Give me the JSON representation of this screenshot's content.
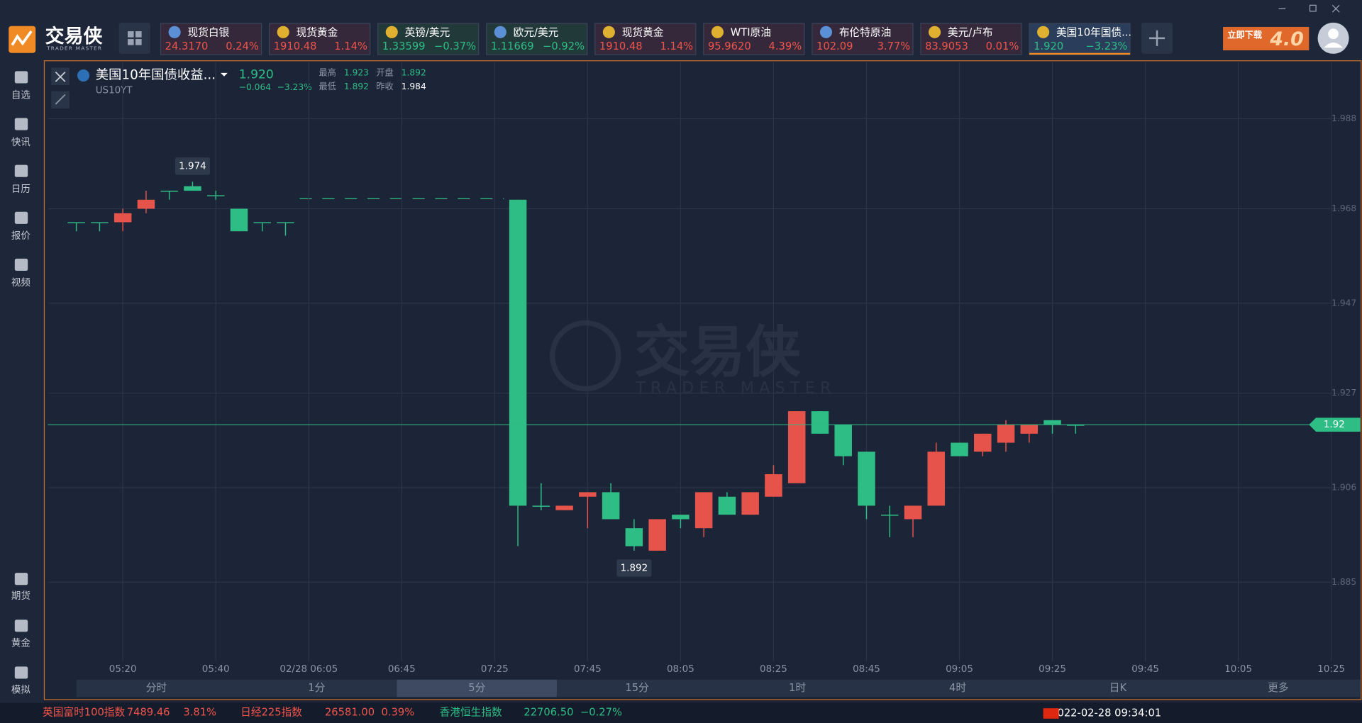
{
  "app": {
    "logo": "交易侠",
    "logo_sub": "TRADER MASTER",
    "promo": "立即下载",
    "promo_version": "4.0"
  },
  "sidebar": {
    "top": [
      "自选",
      "快讯",
      "日历",
      "报价",
      "视频"
    ],
    "bottom": [
      "期货",
      "黄金",
      "模拟"
    ]
  },
  "tabs": [
    {
      "name": "现货白银",
      "price": "24.3170",
      "change": "0.24%",
      "color": "#f0544a"
    },
    {
      "name": "现货黄金",
      "price": "1910.48",
      "change": "1.14%",
      "color": "#f0544a"
    },
    {
      "name": "英镑/美元",
      "price": "1.33599",
      "change": "−0.37%",
      "color": "#2ebd85"
    },
    {
      "name": "欧元/美元",
      "price": "1.11669",
      "change": "−0.92%",
      "color": "#2ebd85"
    },
    {
      "name": "现货黄金",
      "price": "1910.48",
      "change": "1.14%",
      "color": "#f0544a"
    },
    {
      "name": "WTI原油",
      "price": "95.9620",
      "change": "4.39%",
      "color": "#f0544a"
    },
    {
      "name": "布伦特原油",
      "price": "102.09",
      "change": "3.77%",
      "color": "#f0544a"
    },
    {
      "name": "美元/卢布",
      "price": "83.9053",
      "change": "0.01%",
      "color": "#f0544a"
    },
    {
      "name": "美国10年国债...",
      "price": "1.920",
      "change": "−3.23%",
      "color": "#2ebd85"
    }
  ],
  "header": {
    "title": "美国10年国债收益...",
    "symbol": "US10YT",
    "last": "1.920",
    "change": "−0.064",
    "change_pct": "−3.23%",
    "stats": [
      {
        "label": "最高",
        "value": "1.923"
      },
      {
        "label": "开盘",
        "value": "1.892"
      },
      {
        "label": "最低",
        "value": "1.892"
      },
      {
        "label": "昨收",
        "value": "1.984"
      }
    ]
  },
  "watermark": {
    "title": "交易侠",
    "sub": "TRADER MASTER"
  },
  "chart_data": {
    "type": "candlestick",
    "up_color": "#e5534b",
    "down_color": "#2ebd85",
    "x": [
      0,
      1,
      2,
      3,
      4,
      5,
      6,
      7,
      8,
      9,
      19,
      20,
      21,
      22,
      23,
      24,
      25,
      26,
      27,
      28,
      29,
      30,
      31,
      32,
      33,
      34,
      35,
      36,
      37,
      38,
      39,
      40,
      41,
      42,
      43
    ],
    "open": [
      1.965,
      1.965,
      1.965,
      1.968,
      1.972,
      1.973,
      1.971,
      1.968,
      1.965,
      1.965,
      1.97,
      1.902,
      1.901,
      1.904,
      1.905,
      1.897,
      1.892,
      1.9,
      1.897,
      1.904,
      1.9,
      1.904,
      1.907,
      1.923,
      1.92,
      1.914,
      1.9,
      1.899,
      1.902,
      1.916,
      1.914,
      1.916,
      1.918,
      1.921,
      1.92
    ],
    "high": [
      1.965,
      1.965,
      1.968,
      1.972,
      1.972,
      1.974,
      1.972,
      1.968,
      1.965,
      1.965,
      1.97,
      1.907,
      1.902,
      1.905,
      1.907,
      1.899,
      1.899,
      1.9,
      1.905,
      1.905,
      1.905,
      1.911,
      1.923,
      1.923,
      1.92,
      1.914,
      1.902,
      1.902,
      1.916,
      1.916,
      1.918,
      1.921,
      1.92,
      1.921,
      1.92
    ],
    "low": [
      1.963,
      1.963,
      1.963,
      1.967,
      1.97,
      1.972,
      1.97,
      1.963,
      1.963,
      1.962,
      1.893,
      1.901,
      1.901,
      1.897,
      1.899,
      1.892,
      1.892,
      1.897,
      1.895,
      1.9,
      1.9,
      1.904,
      1.907,
      1.918,
      1.911,
      1.899,
      1.895,
      1.895,
      1.902,
      1.913,
      1.913,
      1.914,
      1.916,
      1.918,
      1.918
    ],
    "close": [
      1.965,
      1.965,
      1.967,
      1.97,
      1.972,
      1.972,
      1.971,
      1.963,
      1.965,
      1.965,
      1.902,
      1.902,
      1.902,
      1.905,
      1.899,
      1.893,
      1.899,
      1.899,
      1.905,
      1.9,
      1.905,
      1.909,
      1.923,
      1.918,
      1.913,
      1.902,
      1.9,
      1.902,
      1.914,
      1.913,
      1.918,
      1.92,
      1.92,
      1.92,
      1.92
    ],
    "xlim": [
      -1.23,
      54.65
    ],
    "ylim": [
      1.8674,
      2.0005
    ],
    "yticks": [
      1.988,
      1.968,
      1.947,
      1.927,
      1.906,
      1.885
    ],
    "xticks": [
      {
        "value": 2,
        "label": "05:20"
      },
      {
        "value": 6,
        "label": "05:40"
      },
      {
        "value": 10,
        "label": "02/28 06:05"
      },
      {
        "value": 14,
        "label": "06:45"
      },
      {
        "value": 18,
        "label": "07:25"
      },
      {
        "value": 22,
        "label": "07:45"
      },
      {
        "value": 26,
        "label": "08:05"
      },
      {
        "value": 30,
        "label": "08:25"
      },
      {
        "value": 34,
        "label": "08:45"
      },
      {
        "value": 38,
        "label": "09:05"
      },
      {
        "value": 42,
        "label": "09:25"
      },
      {
        "value": 46,
        "label": "09:45"
      },
      {
        "value": 50,
        "label": "10:05"
      },
      {
        "value": 54,
        "label": "10:25"
      }
    ],
    "last_price": 1.92,
    "annotations": [
      {
        "x": 5,
        "value": 1.974
      },
      {
        "x": 24,
        "value": 1.892
      }
    ],
    "grid": true
  },
  "periods": [
    "分时",
    "1分",
    "5分",
    "15分",
    "1时",
    "4时",
    "日K",
    "更多"
  ],
  "periods_active": "5分",
  "ticker": [
    {
      "name": "英国富时100指数",
      "value": "7489.46",
      "change": "3.81%",
      "color": "#f0544a"
    },
    {
      "name": "日经225指数",
      "value": "26581.00",
      "change": "0.39%",
      "color": "#f0544a"
    },
    {
      "name": "香港恒生指数",
      "value": "22706.50",
      "change": "−0.27%",
      "color": "#2ebd85"
    }
  ],
  "datetime": "2022-02-28 09:34:01"
}
